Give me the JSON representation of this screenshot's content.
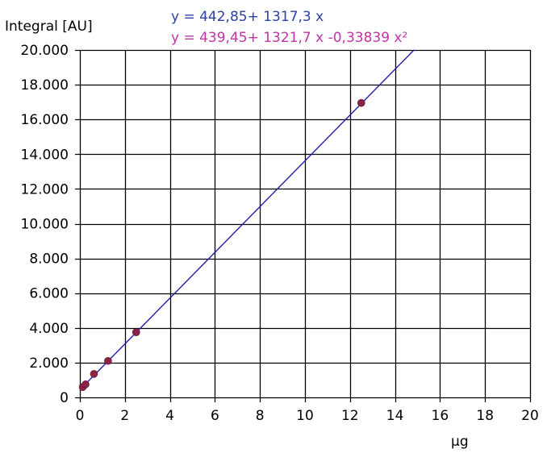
{
  "chart_data": {
    "type": "scatter",
    "ylabel": "Integral [AU]",
    "xlabel": "µg",
    "xlim": [
      0,
      20
    ],
    "ylim": [
      0,
      20000
    ],
    "x_ticks": [
      "0",
      "2",
      "4",
      "6",
      "8",
      "10",
      "12",
      "14",
      "16",
      "18",
      "20"
    ],
    "y_ticks": [
      "0",
      "2.000",
      "4.000",
      "6.000",
      "8.000",
      "10.000",
      "12.000",
      "14.000",
      "16.000",
      "18.000",
      "20.000"
    ],
    "grid": true,
    "equations": {
      "linear": "y = 442,85+ 1317,3 x",
      "quadratic": "y = 439,45+ 1321,7 x -0,33839 x²"
    },
    "series": [
      {
        "kind": "points",
        "color": "#8b2346",
        "points": [
          {
            "x": 0.125,
            "y": 590
          },
          {
            "x": 0.25,
            "y": 750
          },
          {
            "x": 0.625,
            "y": 1350
          },
          {
            "x": 1.25,
            "y": 2100
          },
          {
            "x": 2.5,
            "y": 3750
          },
          {
            "x": 12.5,
            "y": 16950
          }
        ]
      },
      {
        "kind": "fit-line",
        "color": "#1f1fa8",
        "intercept": 442.85,
        "slope": 1317.3,
        "x_range": [
          0,
          14.85
        ]
      }
    ],
    "colors": {
      "linear_equation": "#2b3fa8",
      "quadratic_equation": "#c233a8",
      "grid": "#000000",
      "axis_text": "#000000"
    }
  }
}
